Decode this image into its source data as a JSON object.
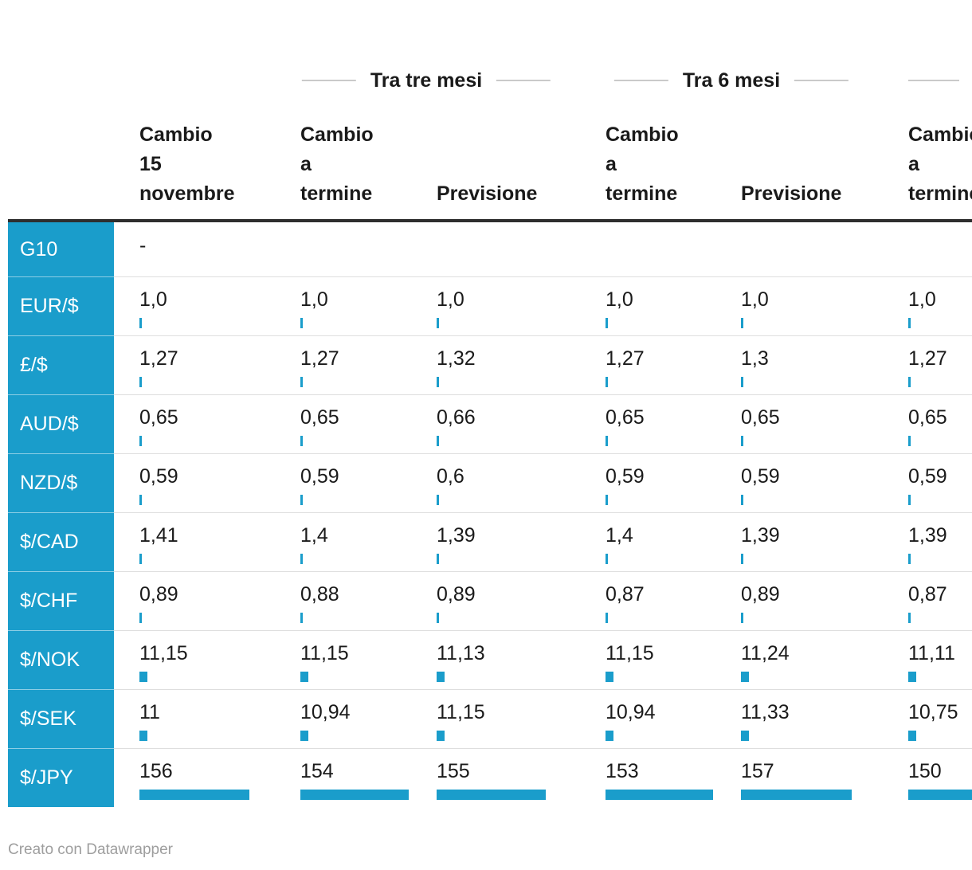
{
  "chart_data": {
    "type": "table",
    "column_groups": [
      {
        "label": "Tra tre mesi"
      },
      {
        "label": "Tra 6 mesi"
      },
      {
        "label": ""
      }
    ],
    "columns": [
      {
        "header_lines": [
          "Cambio",
          "15",
          "novembre"
        ]
      },
      {
        "header_lines": [
          "Cambio",
          "a",
          "termine"
        ]
      },
      {
        "header_lines": [
          "Previsione"
        ]
      },
      {
        "header_lines": [
          "Cambio",
          "a",
          "termine"
        ]
      },
      {
        "header_lines": [
          "Previsione"
        ]
      },
      {
        "header_lines": [
          "Cambio",
          "a",
          "termine"
        ]
      }
    ],
    "rows": [
      {
        "label": "G10",
        "values": [
          "-",
          "",
          "",
          "",
          "",
          ""
        ]
      },
      {
        "label": "EUR/$",
        "values": [
          "1,0",
          "1,0",
          "1,0",
          "1,0",
          "1,0",
          "1,0"
        ]
      },
      {
        "label": "£/$",
        "values": [
          "1,27",
          "1,27",
          "1,32",
          "1,27",
          "1,3",
          "1,27"
        ]
      },
      {
        "label": "AUD/$",
        "values": [
          "0,65",
          "0,65",
          "0,66",
          "0,65",
          "0,65",
          "0,65"
        ]
      },
      {
        "label": "NZD/$",
        "values": [
          "0,59",
          "0,59",
          "0,6",
          "0,59",
          "0,59",
          "0,59"
        ]
      },
      {
        "label": "$/CAD",
        "values": [
          "1,41",
          "1,4",
          "1,39",
          "1,4",
          "1,39",
          "1,39"
        ]
      },
      {
        "label": "$/CHF",
        "values": [
          "0,89",
          "0,88",
          "0,89",
          "0,87",
          "0,89",
          "0,87"
        ]
      },
      {
        "label": "$/NOK",
        "values": [
          "11,15",
          "11,15",
          "11,13",
          "11,15",
          "11,24",
          "11,11"
        ]
      },
      {
        "label": "$/SEK",
        "values": [
          "11",
          "10,94",
          "11,15",
          "10,94",
          "11,33",
          "10,75"
        ]
      },
      {
        "label": "$/JPY",
        "values": [
          "156",
          "154",
          "155",
          "153",
          "157",
          "150"
        ]
      }
    ],
    "bar_color": "#1a9dcb",
    "row_header_bg": "#1a9dcb",
    "max_bar_value": 157,
    "legend_position": "none",
    "grid": "horizontal-separators"
  },
  "footer": {
    "credit": "Creato con Datawrapper"
  }
}
